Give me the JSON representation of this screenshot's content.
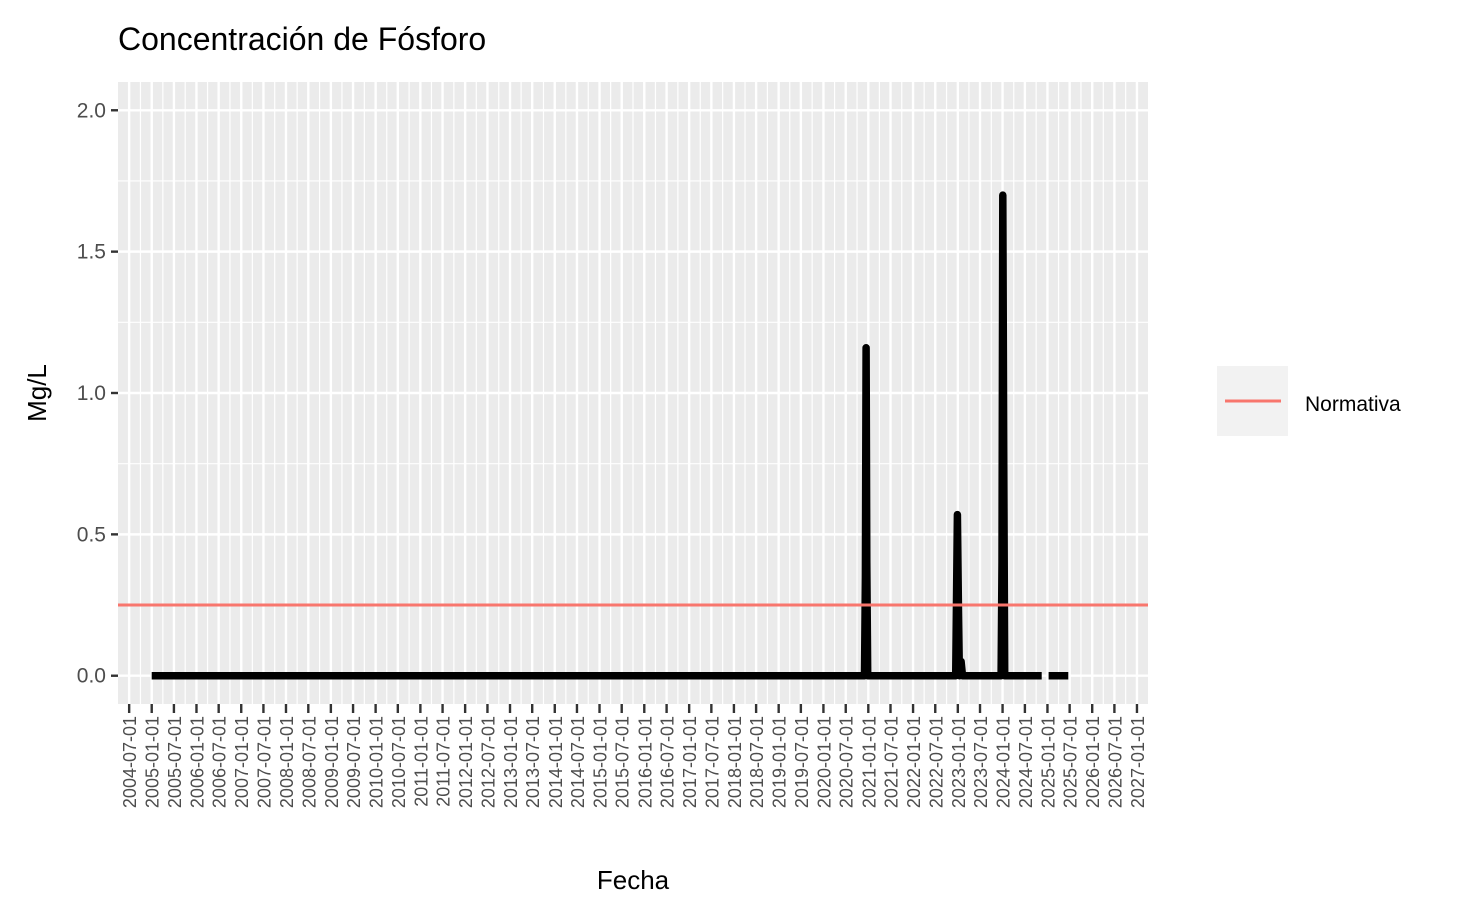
{
  "chart_data": {
    "type": "line",
    "title": "Concentración de Fósforo",
    "xlabel": "Fecha",
    "ylabel": "Mg/L",
    "ylim": [
      -0.1,
      2.1
    ],
    "xlim": [
      "2004-04-01",
      "2027-04-01"
    ],
    "y_ticks": [
      0.0,
      0.5,
      1.0,
      1.5,
      2.0
    ],
    "y_tick_labels": [
      "0.0",
      "0.5",
      "1.0",
      "1.5",
      "2.0"
    ],
    "x_tick_labels": [
      "2004-07-01",
      "2005-01-01",
      "2005-07-01",
      "2006-01-01",
      "2006-07-01",
      "2007-01-01",
      "2007-07-01",
      "2008-01-01",
      "2008-07-01",
      "2009-01-01",
      "2009-07-01",
      "2010-01-01",
      "2010-07-01",
      "2011-01-01",
      "2011-07-01",
      "2012-01-01",
      "2012-07-01",
      "2013-01-01",
      "2013-07-01",
      "2014-01-01",
      "2014-07-01",
      "2015-01-01",
      "2015-07-01",
      "2016-01-01",
      "2016-07-01",
      "2017-01-01",
      "2017-07-01",
      "2018-01-01",
      "2018-07-01",
      "2019-01-01",
      "2019-07-01",
      "2020-01-01",
      "2020-07-01",
      "2021-01-01",
      "2021-07-01",
      "2022-01-01",
      "2022-07-01",
      "2023-01-01",
      "2023-07-01",
      "2024-01-01",
      "2024-07-01",
      "2025-01-01",
      "2025-07-01",
      "2026-01-01",
      "2026-07-01",
      "2027-01-01"
    ],
    "grid": true,
    "legend_position": "right",
    "series": [
      {
        "color": "#000000",
        "segments": [
          {
            "points": [
              [
                "2005-01-01",
                0.0
              ],
              [
                "2020-12-01",
                0.0
              ],
              [
                "2020-12-08",
                0.35
              ],
              [
                "2020-12-14",
                1.16
              ],
              [
                "2020-12-20",
                0.4
              ],
              [
                "2020-12-27",
                0.0
              ],
              [
                "2022-12-15",
                0.0
              ],
              [
                "2022-12-22",
                0.3
              ],
              [
                "2022-12-29",
                0.57
              ],
              [
                "2023-01-06",
                0.25
              ],
              [
                "2023-01-14",
                0.0
              ],
              [
                "2023-01-28",
                0.05
              ],
              [
                "2023-02-08",
                0.0
              ],
              [
                "2023-12-20",
                0.0
              ],
              [
                "2023-12-27",
                0.4
              ],
              [
                "2024-01-03",
                1.7
              ],
              [
                "2024-01-10",
                0.8
              ],
              [
                "2024-01-18",
                0.0
              ],
              [
                "2024-11-15",
                0.0
              ]
            ]
          },
          {
            "points": [
              [
                "2025-01-10",
                0.0
              ],
              [
                "2025-06-20",
                0.0
              ]
            ]
          }
        ]
      },
      {
        "name": "Normativa",
        "color": "#f8766d",
        "segments": [
          {
            "points": [
              [
                "2004-04-01",
                0.25
              ],
              [
                "2027-04-01",
                0.25
              ]
            ]
          }
        ]
      }
    ]
  }
}
